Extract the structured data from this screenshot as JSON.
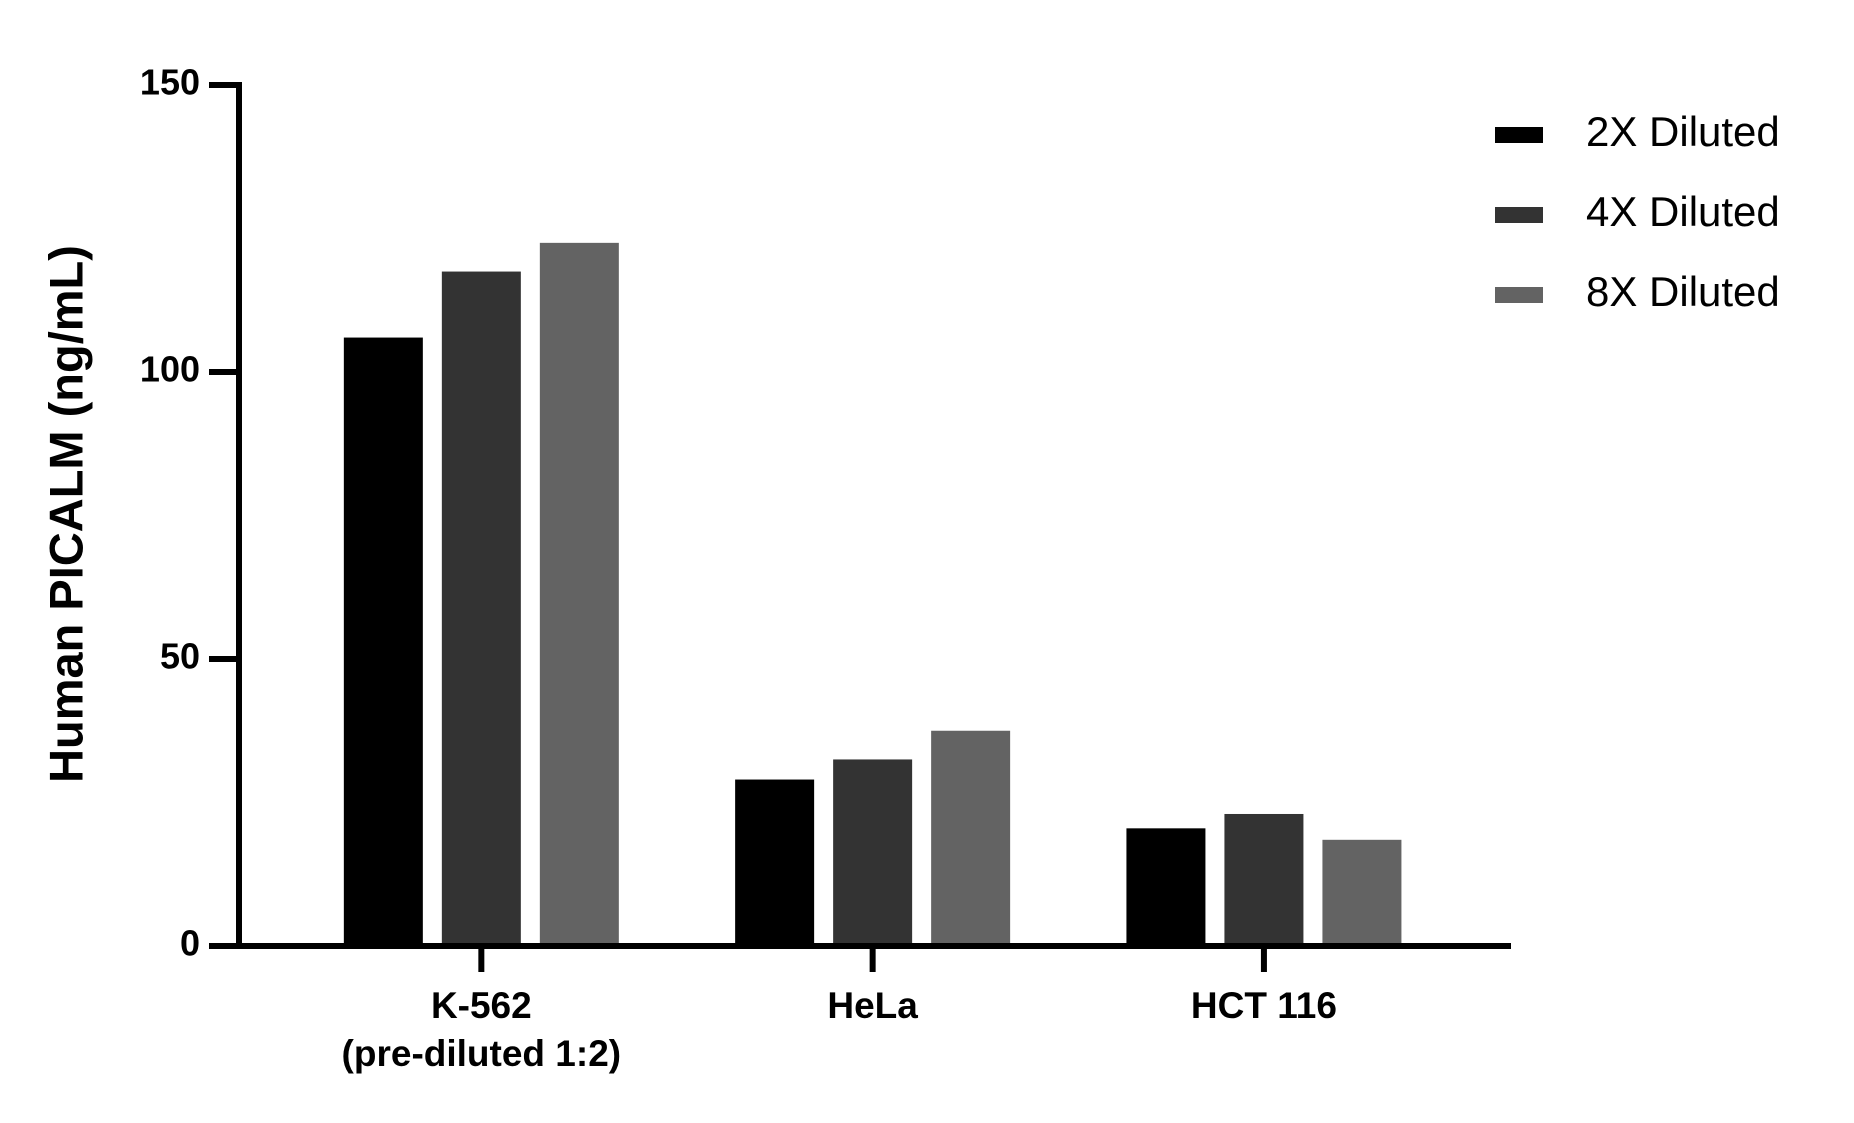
{
  "chart_data": {
    "type": "bar",
    "y_label": "Human PICALM (ng/mL)",
    "categories": [
      "K-562\n(pre-diluted 1:2)",
      "HeLa",
      "HCT 116"
    ],
    "series": [
      {
        "name": "2X Diluted",
        "color": "#000000",
        "values": [
          106,
          29,
          20.5
        ]
      },
      {
        "name": "4X Diluted",
        "color": "#333333",
        "values": [
          117.5,
          32.5,
          23
        ]
      },
      {
        "name": "8X Diluted",
        "color": "#636363",
        "values": [
          122.5,
          37.5,
          18.5
        ]
      }
    ],
    "ylim": [
      0,
      150
    ],
    "yticks": [
      0,
      50,
      100,
      150
    ],
    "grid": false,
    "legend": "top-right"
  }
}
